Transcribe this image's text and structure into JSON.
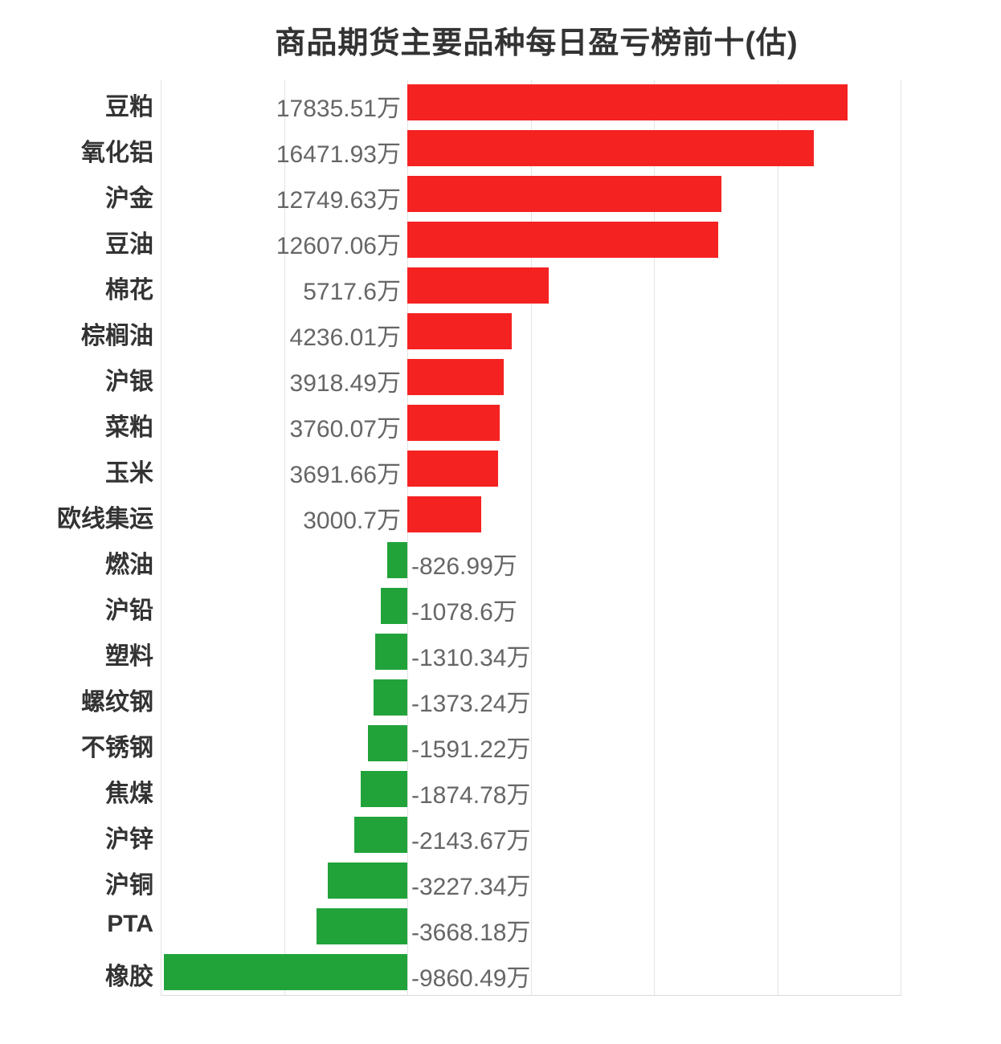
{
  "chart_data": {
    "type": "bar",
    "orientation": "horizontal",
    "title": "商品期货主要品种每日盈亏榜前十(估)",
    "xlabel": "",
    "ylabel": "",
    "unit": "万",
    "xlim": [
      -10000,
      20000
    ],
    "grid": true,
    "grid_ticks": [
      -10000,
      -5000,
      0,
      5000,
      10000,
      15000,
      20000
    ],
    "legend": null,
    "colors": {
      "positive": "#F52222",
      "negative": "#21A33A"
    },
    "categories": [
      "豆粕",
      "氧化铝",
      "沪金",
      "豆油",
      "棉花",
      "棕榈油",
      "沪银",
      "菜粕",
      "玉米",
      "欧线集运",
      "燃油",
      "沪铅",
      "塑料",
      "螺纹钢",
      "不锈钢",
      "焦煤",
      "沪锌",
      "沪铜",
      "PTA",
      "橡胶"
    ],
    "values": [
      17835.51,
      16471.93,
      12749.63,
      12607.06,
      5717.6,
      4236.01,
      3918.49,
      3760.07,
      3691.66,
      3000.7,
      -826.99,
      -1078.6,
      -1310.34,
      -1373.24,
      -1591.22,
      -1874.78,
      -2143.67,
      -3227.34,
      -3668.18,
      -9860.49
    ],
    "labels": [
      "17835.51万",
      "16471.93万",
      "12749.63万",
      "12607.06万",
      "5717.6万",
      "4236.01万",
      "3918.49万",
      "3760.07万",
      "3691.66万",
      "3000.7万",
      "-826.99万",
      "-1078.6万",
      "-1310.34万",
      "-1373.24万",
      "-1591.22万",
      "-1874.78万",
      "-2143.67万",
      "-3227.34万",
      "-3668.18万",
      "-9860.49万"
    ]
  }
}
